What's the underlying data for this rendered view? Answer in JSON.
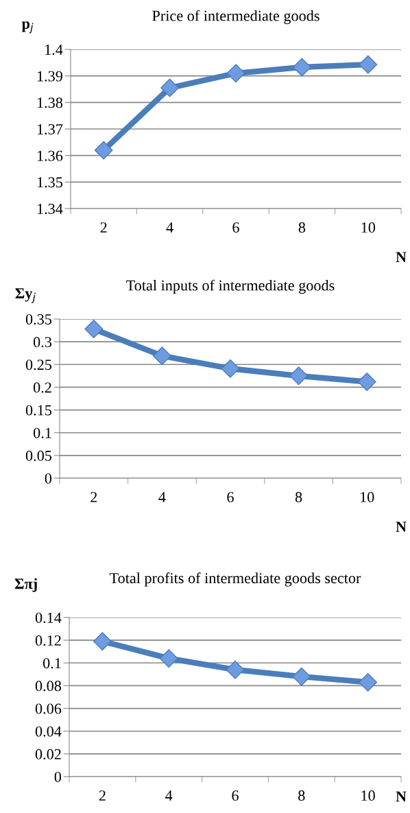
{
  "chart_data": [
    {
      "type": "line",
      "title": "Price of intermediate goods",
      "ylabel": "p$_{j}$",
      "xlabel": "N",
      "categories": [
        "2",
        "4",
        "6",
        "8",
        "10"
      ],
      "series": [
        {
          "color": "#4a7ebb",
          "values": [
            1.362,
            1.3855,
            1.391,
            1.3933,
            1.3943
          ]
        }
      ],
      "ylim": [
        1.34,
        1.4
      ],
      "yticks": [
        {
          "value": 1.34,
          "label": "1.34"
        },
        {
          "value": 1.35,
          "label": "1.35"
        },
        {
          "value": 1.36,
          "label": "1.36"
        },
        {
          "value": 1.37,
          "label": "1.37"
        },
        {
          "value": 1.38,
          "label": "1.38"
        },
        {
          "value": 1.39,
          "label": "1.39"
        },
        {
          "value": 1.4,
          "label": "1.4"
        }
      ],
      "grid": "y",
      "marker": "diamond",
      "line_style": "solid"
    },
    {
      "type": "line",
      "title": "Total inputs of intermediate goods",
      "ylabel": "Σy$_{j}$",
      "xlabel": "N",
      "categories": [
        "2",
        "4",
        "6",
        "8",
        "10"
      ],
      "series": [
        {
          "color": "#4a7ebb",
          "values": [
            0.328,
            0.269,
            0.241,
            0.225,
            0.212
          ]
        }
      ],
      "ylim": [
        0,
        0.35
      ],
      "yticks": [
        0,
        0.05,
        0.1,
        0.15,
        0.2,
        0.25,
        0.3,
        0.35
      ],
      "grid": "y",
      "marker": "diamond",
      "line_style": "solid"
    },
    {
      "type": "line",
      "title": "Total profits of intermediate goods sector",
      "ylabel": "Σπj",
      "xlabel": "N",
      "categories": [
        "2",
        "4",
        "6",
        "8",
        "10"
      ],
      "series": [
        {
          "color": "#4a7ebb",
          "values": [
            0.119,
            0.104,
            0.094,
            0.088,
            0.083
          ]
        }
      ],
      "ylim": [
        0,
        0.14
      ],
      "yticks": [
        0,
        0.02,
        0.04,
        0.06,
        0.08,
        0.1,
        0.12,
        0.14
      ],
      "grid": "y",
      "marker": "diamond",
      "line_style": "solid"
    }
  ]
}
